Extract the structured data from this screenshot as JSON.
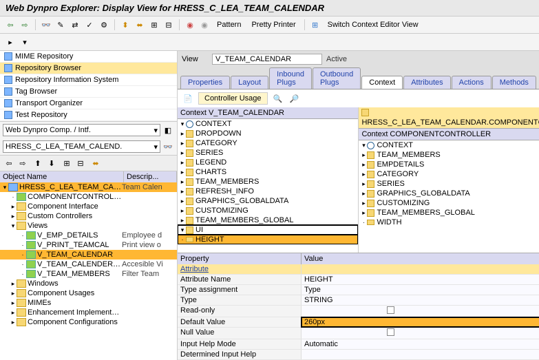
{
  "title": "Web Dynpro Explorer: Display View for HRESS_C_LEA_TEAM_CALENDAR",
  "toolbar2": {
    "pattern": "Pattern",
    "pretty": "Pretty Printer",
    "switch": "Switch Context Editor View"
  },
  "sidebar": {
    "links": [
      {
        "label": "MIME Repository",
        "active": false
      },
      {
        "label": "Repository Browser",
        "active": true
      },
      {
        "label": "Repository Information System",
        "active": false
      },
      {
        "label": "Tag Browser",
        "active": false
      },
      {
        "label": "Transport Organizer",
        "active": false
      },
      {
        "label": "Test Repository",
        "active": false
      }
    ],
    "combo1": "Web Dynpro Comp. / Intf.",
    "combo2": "HRESS_C_LEA_TEAM_CALEND.",
    "tree_headers": {
      "name": "Object Name",
      "desc": "Descrip..."
    },
    "tree": [
      {
        "ind": 0,
        "exp": "▾",
        "ico": "cube",
        "label": "HRESS_C_LEA_TEAM_CALENDAR",
        "desc": "Team Calen",
        "sel": true
      },
      {
        "ind": 1,
        "exp": "·",
        "ico": "green",
        "label": "COMPONENTCONTROLLER",
        "desc": ""
      },
      {
        "ind": 1,
        "exp": "▸",
        "ico": "folder",
        "label": "Component Interface",
        "desc": ""
      },
      {
        "ind": 1,
        "exp": "▸",
        "ico": "folder",
        "label": "Custom Controllers",
        "desc": ""
      },
      {
        "ind": 1,
        "exp": "▾",
        "ico": "folder",
        "label": "Views",
        "desc": ""
      },
      {
        "ind": 2,
        "exp": "·",
        "ico": "green",
        "label": "V_EMP_DETAILS",
        "desc": "Employee d"
      },
      {
        "ind": 2,
        "exp": "·",
        "ico": "green",
        "label": "V_PRINT_TEAMCAL",
        "desc": "Print view o"
      },
      {
        "ind": 2,
        "exp": "·",
        "ico": "green",
        "label": "V_TEAM_CALENDAR",
        "desc": "",
        "sel": true
      },
      {
        "ind": 2,
        "exp": "·",
        "ico": "green",
        "label": "V_TEAM_CALENDER_AC",
        "desc": "Accesible Vi"
      },
      {
        "ind": 2,
        "exp": "·",
        "ico": "green",
        "label": "V_TEAM_MEMBERS",
        "desc": "Filter Team"
      },
      {
        "ind": 1,
        "exp": "▸",
        "ico": "folder",
        "label": "Windows",
        "desc": ""
      },
      {
        "ind": 1,
        "exp": "▸",
        "ico": "folder",
        "label": "Component Usages",
        "desc": ""
      },
      {
        "ind": 1,
        "exp": "▸",
        "ico": "folder",
        "label": "MIMEs",
        "desc": ""
      },
      {
        "ind": 1,
        "exp": "▸",
        "ico": "folder",
        "label": "Enhancement Implementations",
        "desc": ""
      },
      {
        "ind": 1,
        "exp": "▸",
        "ico": "folder",
        "label": "Component Configurations",
        "desc": ""
      }
    ]
  },
  "view": {
    "label": "View",
    "value": "V_TEAM_CALENDAR",
    "status": "Active"
  },
  "tabs": [
    "Properties",
    "Layout",
    "Inbound Plugs",
    "Outbound Plugs",
    "Context",
    "Attributes",
    "Actions",
    "Methods"
  ],
  "active_tab": "Context",
  "ctrl_usage": "Controller Usage",
  "ctx_left": {
    "header": "Context V_TEAM_CALENDAR",
    "rows": [
      {
        "ind": 0,
        "exp": "▾",
        "type": "node",
        "label": "CONTEXT"
      },
      {
        "ind": 1,
        "exp": "▸",
        "type": "attr",
        "label": "DROPDOWN"
      },
      {
        "ind": 1,
        "exp": "▸",
        "type": "attr",
        "label": "CATEGORY"
      },
      {
        "ind": 1,
        "exp": "▸",
        "type": "attr",
        "label": "SERIES"
      },
      {
        "ind": 1,
        "exp": "▸",
        "type": "attr",
        "label": "LEGEND"
      },
      {
        "ind": 1,
        "exp": "▸",
        "type": "attr",
        "label": "CHARTS"
      },
      {
        "ind": 1,
        "exp": "▸",
        "type": "attr",
        "label": "TEAM_MEMBERS"
      },
      {
        "ind": 1,
        "exp": "▸",
        "type": "attr",
        "label": "REFRESH_INFO"
      },
      {
        "ind": 1,
        "exp": "▸",
        "type": "attr",
        "label": "GRAPHICS_GLOBALDATA"
      },
      {
        "ind": 1,
        "exp": "▸",
        "type": "attr",
        "label": "CUSTOMIZING"
      },
      {
        "ind": 1,
        "exp": "▸",
        "type": "attr",
        "label": "TEAM_MEMBERS_GLOBAL"
      },
      {
        "ind": 1,
        "exp": "▾",
        "type": "attr",
        "label": "UI",
        "boxed": true
      },
      {
        "ind": 2,
        "exp": "·",
        "type": "leaf",
        "label": "HEIGHT",
        "sel": true,
        "boxed": true
      }
    ]
  },
  "ctx_right": {
    "header": "HRESS_C_LEA_TEAM_CALENDAR.COMPONENTCONTR",
    "subheader": "Context COMPONENTCONTROLLER",
    "rows": [
      {
        "ind": 0,
        "exp": "▾",
        "type": "node",
        "label": "CONTEXT"
      },
      {
        "ind": 1,
        "exp": "▸",
        "type": "attr",
        "label": "TEAM_MEMBERS"
      },
      {
        "ind": 1,
        "exp": "▸",
        "type": "attr",
        "label": "EMPDETAILS"
      },
      {
        "ind": 1,
        "exp": "▸",
        "type": "attr",
        "label": "CATEGORY"
      },
      {
        "ind": 1,
        "exp": "▸",
        "type": "attr",
        "label": "SERIES"
      },
      {
        "ind": 1,
        "exp": "▸",
        "type": "attr",
        "label": "GRAPHICS_GLOBALDATA"
      },
      {
        "ind": 1,
        "exp": "▸",
        "type": "attr",
        "label": "CUSTOMIZING"
      },
      {
        "ind": 1,
        "exp": "▸",
        "type": "attr",
        "label": "TEAM_MEMBERS_GLOBAL"
      },
      {
        "ind": 1,
        "exp": "·",
        "type": "leaf",
        "label": "WIDTH"
      }
    ]
  },
  "props": {
    "headers": {
      "name": "Property",
      "val": "Value"
    },
    "rows": [
      {
        "name": "Attribute",
        "val": "",
        "cat": true
      },
      {
        "name": "Attribute Name",
        "val": "HEIGHT"
      },
      {
        "name": "Type assignment",
        "val": "Type"
      },
      {
        "name": "Type",
        "val": "STRING"
      },
      {
        "name": "Read-only",
        "val": "",
        "chk": true
      },
      {
        "name": "Default Value",
        "val": "260px",
        "hl": true
      },
      {
        "name": "Null Value",
        "val": "",
        "chk": true
      },
      {
        "name": "Input Help Mode",
        "val": "Automatic"
      },
      {
        "name": "Determined Input Help",
        "val": ""
      }
    ]
  }
}
